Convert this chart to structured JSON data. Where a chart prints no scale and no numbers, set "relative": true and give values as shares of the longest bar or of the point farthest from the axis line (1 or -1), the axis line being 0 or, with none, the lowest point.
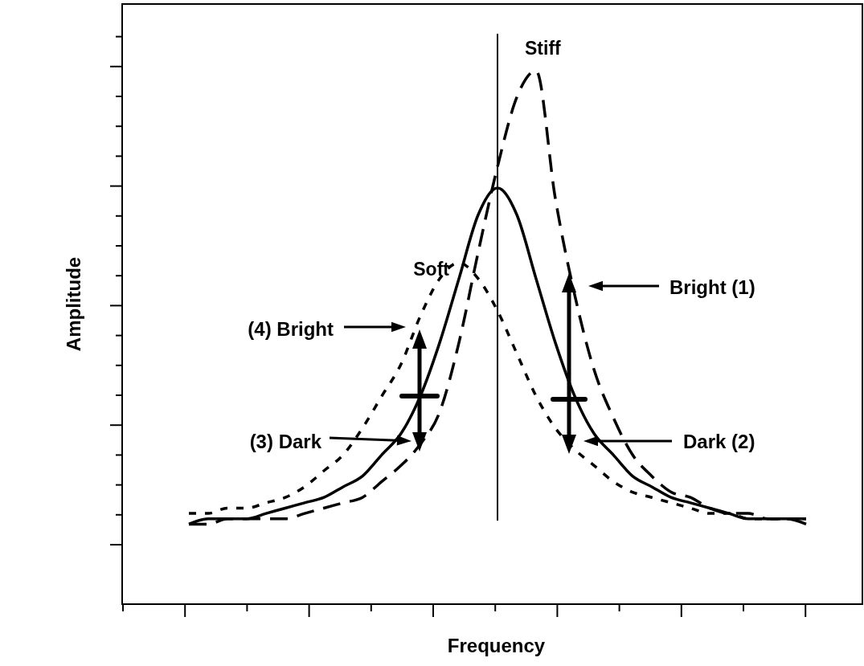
{
  "chart_data": {
    "type": "line",
    "relative": true,
    "xlabel": "Frequency",
    "ylabel": "Amplitude",
    "categories": [
      null,
      null,
      null,
      null,
      null,
      null,
      null,
      null,
      null,
      null,
      null,
      null,
      null,
      null,
      null,
      null,
      null,
      null,
      null,
      null,
      null,
      null,
      null,
      null,
      null,
      null,
      null,
      null,
      null,
      null,
      null,
      null,
      null
    ],
    "series": [
      {
        "color": "#000000",
        "line_style": "solid",
        "values": [
          0.15,
          0.16,
          0.16,
          0.16,
          0.17,
          0.18,
          0.19,
          0.2,
          0.22,
          0.24,
          0.28,
          0.32,
          0.39,
          0.49,
          0.61,
          0.73,
          0.78,
          0.73,
          0.61,
          0.49,
          0.39,
          0.32,
          0.28,
          0.24,
          0.22,
          0.2,
          0.19,
          0.18,
          0.17,
          0.16,
          0.16,
          0.16,
          0.15
        ]
      },
      {
        "name": "Stiff",
        "color": "#000000",
        "line_style": "dashed",
        "values": [
          0.15,
          0.15,
          0.16,
          0.16,
          0.16,
          0.16,
          0.17,
          0.18,
          0.19,
          0.2,
          0.23,
          0.26,
          0.3,
          0.36,
          0.49,
          0.66,
          0.82,
          0.95,
          1.0,
          0.76,
          0.58,
          0.44,
          0.35,
          0.28,
          0.24,
          0.21,
          0.2,
          0.18,
          0.17,
          0.17,
          0.16,
          0.16,
          0.16
        ]
      },
      {
        "name": "Soft",
        "color": "#000000",
        "line_style": "dotted",
        "values": [
          0.17,
          0.17,
          0.18,
          0.18,
          0.19,
          0.2,
          0.22,
          0.25,
          0.28,
          0.33,
          0.39,
          0.45,
          0.54,
          0.61,
          0.64,
          0.61,
          0.55,
          0.47,
          0.39,
          0.33,
          0.29,
          0.26,
          0.23,
          0.21,
          0.2,
          0.19,
          0.18,
          0.17,
          0.17,
          0.16,
          0.16,
          0.16,
          0.16
        ]
      }
    ],
    "annotations": [
      "Bright (1)",
      "Dark (2)",
      "(3) Dark",
      "(4) Bright"
    ]
  }
}
